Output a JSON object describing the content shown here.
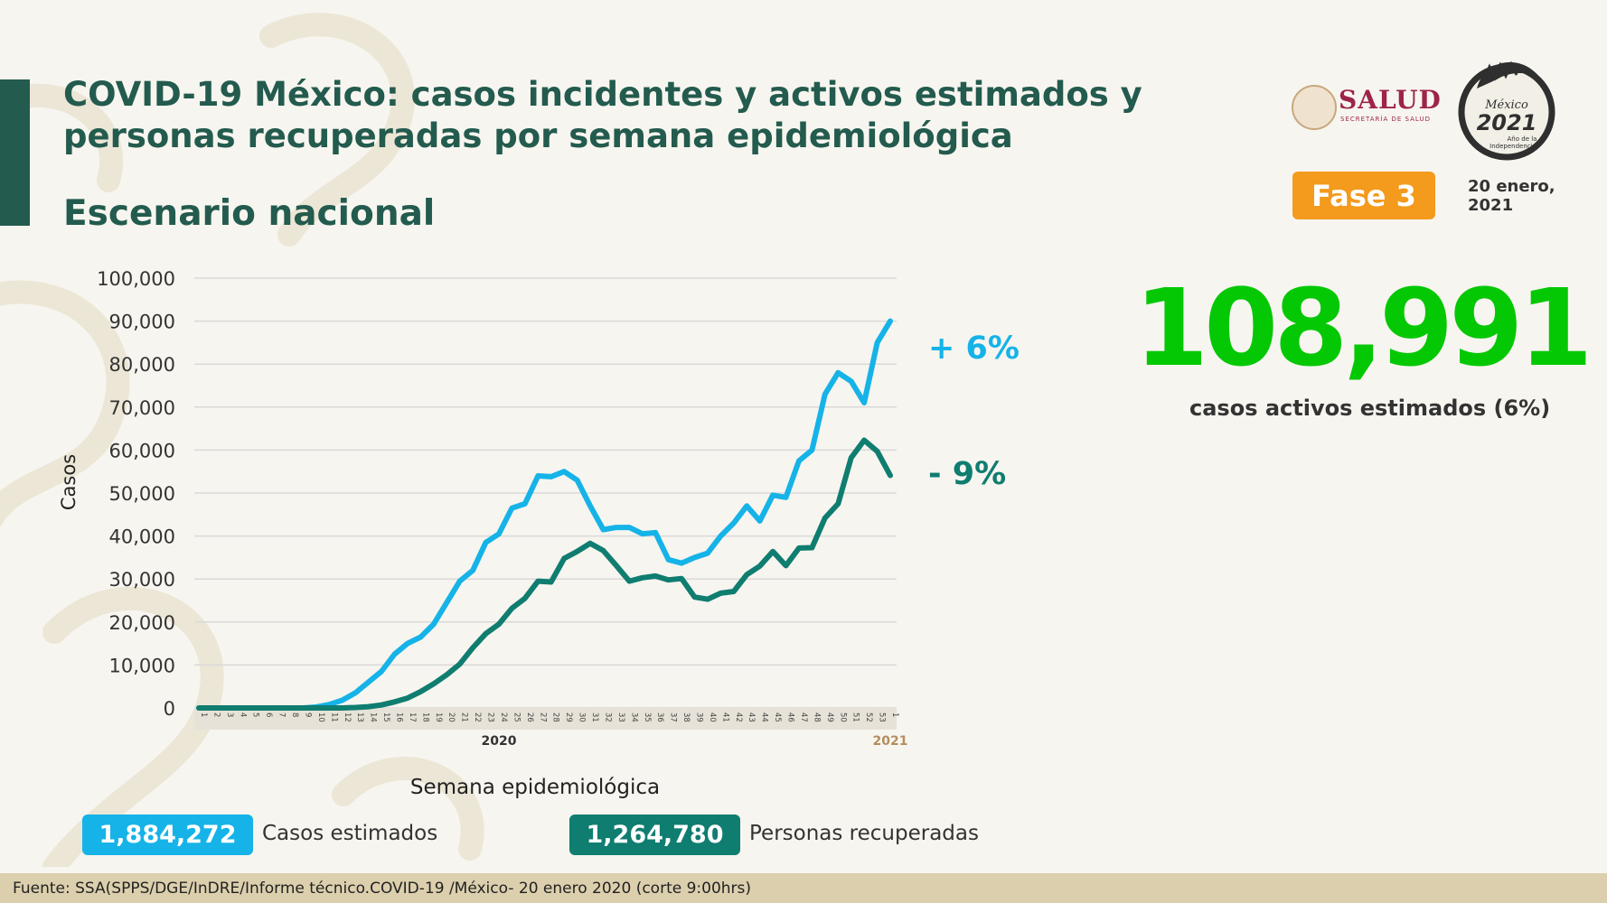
{
  "header": {
    "title_line1": "COVID-19 México: casos incidentes y activos estimados y",
    "title_line2": "personas recuperadas por semana epidemiológica",
    "subtitle": "Escenario nacional",
    "logo_name": "SALUD",
    "logo_sub": "SECRETARÍA DE SALUD",
    "phase_badge": "Fase 3",
    "date_line1": "20 enero,",
    "date_line2": "2021"
  },
  "summary": {
    "active_estimated": "108,991",
    "active_label": "casos activos estimados (6%)",
    "incident_change": "+ 6%",
    "recovered_change": "- 9%",
    "estimated_cases": "1,884,272",
    "estimated_cases_label": "Casos estimados",
    "recovered": "1,264,780",
    "recovered_label": "Personas recuperadas"
  },
  "colors": {
    "title": "#235b4e",
    "incident": "#15b3e8",
    "recovered": "#0f7d70",
    "active_big": "#05c805",
    "phase": "#f49a1c",
    "footer_bg": "#dccfad"
  },
  "chart_data": {
    "type": "line",
    "title": "",
    "xlabel": "Semana epidemiológica",
    "ylabel": "Casos",
    "ylim": [
      0,
      100000
    ],
    "yticks": [
      "0",
      "10,000",
      "20,000",
      "30,000",
      "40,000",
      "50,000",
      "60,000",
      "70,000",
      "80,000",
      "90,000",
      "100,000"
    ],
    "x": [
      "1",
      "2",
      "3",
      "4",
      "5",
      "6",
      "7",
      "8",
      "9",
      "10",
      "11",
      "12",
      "13",
      "14",
      "15",
      "16",
      "17",
      "18",
      "19",
      "20",
      "21",
      "22",
      "23",
      "24",
      "25",
      "26",
      "27",
      "28",
      "29",
      "30",
      "31",
      "32",
      "33",
      "34",
      "35",
      "36",
      "37",
      "38",
      "39",
      "40",
      "41",
      "42",
      "43",
      "44",
      "45",
      "46",
      "47",
      "48",
      "49",
      "50",
      "51",
      "52",
      "53",
      "1"
    ],
    "year_labels": [
      {
        "label": "2020",
        "at_week": "24"
      },
      {
        "label": "2021",
        "at_week": "1"
      }
    ],
    "grid": true,
    "series": [
      {
        "color": "#15b3e8",
        "values": [
          0,
          0,
          0,
          0,
          0,
          0,
          0,
          0,
          0,
          200,
          800,
          1800,
          3500,
          6000,
          8500,
          12500,
          15000,
          16500,
          19500,
          24500,
          29500,
          32000,
          38500,
          40500,
          46500,
          47500,
          54000,
          53800,
          55000,
          53000,
          47000,
          41500,
          42000,
          42000,
          40500,
          40800,
          34500,
          33700,
          35000,
          36000,
          40000,
          43000,
          47000,
          43500,
          49500,
          49000,
          57500,
          60000,
          73000,
          78000,
          76000,
          71000,
          85000,
          90000
        ]
      },
      {
        "color": "#0f7d70",
        "values": [
          0,
          0,
          0,
          0,
          0,
          0,
          0,
          0,
          0,
          0,
          0,
          0,
          100,
          300,
          700,
          1400,
          2300,
          3800,
          5600,
          7700,
          10200,
          14000,
          17300,
          19500,
          23200,
          25500,
          29500,
          29300,
          34800,
          36400,
          38300,
          36600,
          33100,
          29500,
          30300,
          30700,
          29800,
          30100,
          25800,
          25300,
          26700,
          27100,
          31000,
          33000,
          36400,
          33100,
          37200,
          37300,
          44200,
          47500,
          58200,
          62300,
          59700,
          54100
        ]
      }
    ]
  },
  "footer": {
    "source": "Fuente: SSA(SPPS/DGE/InDRE/Informe técnico.COVID-19 /México- 20 enero 2020 (corte 9:00hrs)"
  }
}
